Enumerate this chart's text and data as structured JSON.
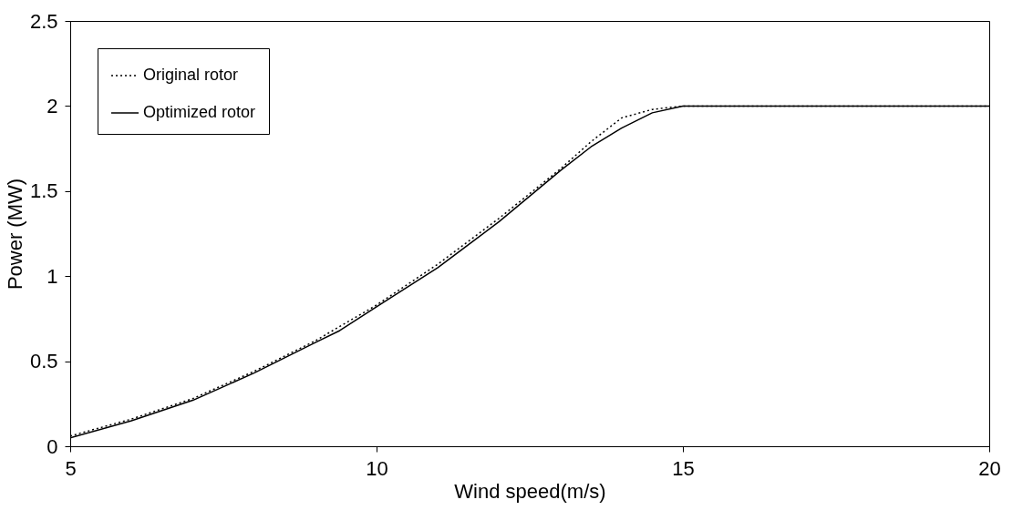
{
  "chart_data": {
    "type": "line",
    "xlabel": "Wind speed(m/s)",
    "ylabel": "Power (MW)",
    "xlim": [
      5,
      20
    ],
    "xticks": [
      5,
      10,
      15,
      20
    ],
    "ylim": [
      0,
      2.5
    ],
    "yticks": [
      0,
      0.5,
      1,
      1.5,
      2,
      2.5
    ],
    "grid": false,
    "legend": "top left",
    "series": [
      {
        "name": "Original rotor",
        "color": "#000000",
        "line_style": "dotted",
        "x": [
          5,
          6,
          7,
          8,
          9,
          10,
          11,
          12,
          13,
          13.5,
          14,
          14.5,
          15,
          20
        ],
        "values": [
          0.06,
          0.16,
          0.28,
          0.44,
          0.62,
          0.83,
          1.07,
          1.34,
          1.63,
          1.79,
          1.93,
          1.98,
          2.0,
          2.0
        ]
      },
      {
        "name": "Optimized rotor",
        "color": "#000000",
        "line_style": "solid",
        "x": [
          5,
          6,
          7,
          8,
          9,
          9.4,
          10,
          11,
          12,
          13,
          13.5,
          14,
          14.5,
          15,
          20
        ],
        "values": [
          0.05,
          0.15,
          0.27,
          0.43,
          0.61,
          0.68,
          0.82,
          1.05,
          1.32,
          1.62,
          1.76,
          1.87,
          1.96,
          2.0,
          2.0
        ]
      }
    ]
  }
}
